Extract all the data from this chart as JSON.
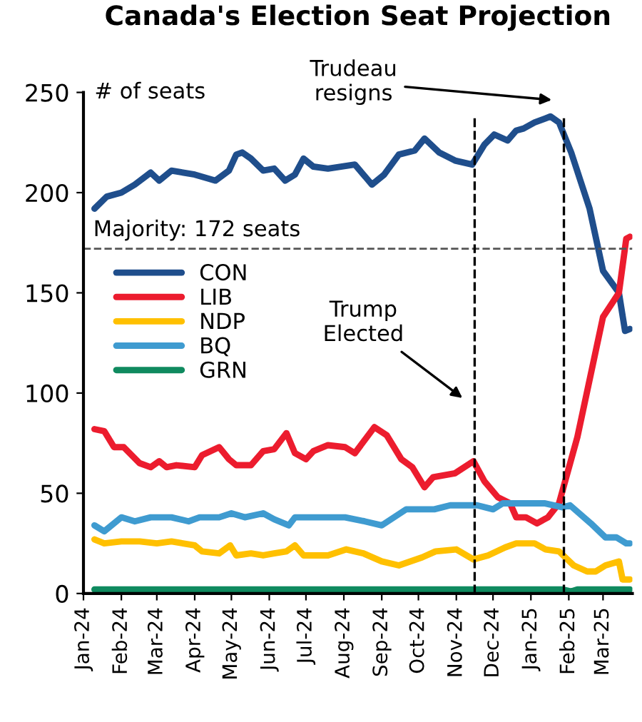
{
  "chart_data": {
    "type": "line",
    "title": "Canada's Election Seat Projection",
    "ylabel": "# of seats",
    "xlim": [
      "2024-01-01",
      "2025-03-25"
    ],
    "xticks": [
      {
        "value": "2024-01-01",
        "label": "Jan-24"
      },
      {
        "value": "2024-02-01",
        "label": "Feb-24"
      },
      {
        "value": "2024-03-01",
        "label": "Mar-24"
      },
      {
        "value": "2024-04-01",
        "label": "Apr-24"
      },
      {
        "value": "2024-05-01",
        "label": "May-24"
      },
      {
        "value": "2024-06-01",
        "label": "Jun-24"
      },
      {
        "value": "2024-07-01",
        "label": "Jul-24"
      },
      {
        "value": "2024-08-01",
        "label": "Aug-24"
      },
      {
        "value": "2024-09-01",
        "label": "Sep-24"
      },
      {
        "value": "2024-10-01",
        "label": "Oct-24"
      },
      {
        "value": "2024-11-01",
        "label": "Nov-24"
      },
      {
        "value": "2024-12-01",
        "label": "Dec-24"
      },
      {
        "value": "2025-01-01",
        "label": "Jan-25"
      },
      {
        "value": "2025-02-01",
        "label": "Feb-25"
      },
      {
        "value": "2025-03-01",
        "label": "Mar-25"
      }
    ],
    "ylim": [
      0,
      250
    ],
    "yticks": [
      0,
      50,
      100,
      150,
      200,
      250
    ],
    "grid": false,
    "legend": "top left",
    "series": [
      {
        "name": "CON",
        "color": "#1f4e8c",
        "x": [
          "2024-01-10",
          "2024-01-20",
          "2024-02-01",
          "2024-02-12",
          "2024-02-25",
          "2024-03-03",
          "2024-03-13",
          "2024-04-01",
          "2024-04-18",
          "2024-04-29",
          "2024-05-05",
          "2024-05-10",
          "2024-05-17",
          "2024-05-27",
          "2024-06-05",
          "2024-06-14",
          "2024-06-22",
          "2024-06-29",
          "2024-07-07",
          "2024-07-19",
          "2024-08-10",
          "2024-08-24",
          "2024-09-03",
          "2024-09-15",
          "2024-09-28",
          "2024-10-06",
          "2024-10-18",
          "2024-10-31",
          "2024-11-14",
          "2024-11-24",
          "2024-12-02",
          "2024-12-13",
          "2024-12-20",
          "2024-12-26",
          "2025-01-04",
          "2025-01-17",
          "2025-01-24",
          "2025-02-03",
          "2025-02-18",
          "2025-03-01",
          "2025-03-14",
          "2025-03-19",
          "2025-03-23"
        ],
        "values": [
          192,
          198,
          200,
          204,
          210,
          206,
          211,
          209,
          206,
          211,
          219,
          220,
          217,
          211,
          212,
          206,
          209,
          217,
          213,
          212,
          214,
          204,
          209,
          219,
          221,
          227,
          220,
          216,
          214,
          224,
          229,
          226,
          231,
          232,
          235,
          238,
          235,
          220,
          192,
          161,
          150,
          131,
          132
        ]
      },
      {
        "name": "LIB",
        "color": "#ec1c2e",
        "x": [
          "2024-01-10",
          "2024-01-18",
          "2024-01-26",
          "2024-02-03",
          "2024-02-16",
          "2024-02-25",
          "2024-03-03",
          "2024-03-09",
          "2024-03-17",
          "2024-04-01",
          "2024-04-07",
          "2024-04-21",
          "2024-04-29",
          "2024-05-05",
          "2024-05-17",
          "2024-05-27",
          "2024-06-05",
          "2024-06-15",
          "2024-06-22",
          "2024-07-01",
          "2024-07-07",
          "2024-07-19",
          "2024-08-02",
          "2024-08-10",
          "2024-08-26",
          "2024-09-05",
          "2024-09-17",
          "2024-09-26",
          "2024-10-06",
          "2024-10-13",
          "2024-10-31",
          "2024-11-15",
          "2024-11-24",
          "2024-12-05",
          "2024-12-15",
          "2024-12-20",
          "2024-12-28",
          "2025-01-06",
          "2025-01-15",
          "2025-01-24",
          "2025-02-08",
          "2025-03-01",
          "2025-03-14",
          "2025-03-20",
          "2025-03-23"
        ],
        "values": [
          82,
          81,
          73,
          73,
          65,
          63,
          66,
          63,
          64,
          63,
          69,
          73,
          67,
          64,
          64,
          71,
          72,
          80,
          70,
          67,
          71,
          74,
          73,
          70,
          83,
          79,
          67,
          63,
          53,
          58,
          60,
          66,
          56,
          48,
          45,
          38,
          38,
          35,
          38,
          45,
          78,
          138,
          150,
          177,
          178
        ]
      },
      {
        "name": "NDP",
        "color": "#ffc000",
        "x": [
          "2024-01-10",
          "2024-01-18",
          "2024-02-01",
          "2024-02-16",
          "2024-03-01",
          "2024-03-13",
          "2024-04-01",
          "2024-04-07",
          "2024-04-21",
          "2024-04-30",
          "2024-05-05",
          "2024-05-17",
          "2024-05-27",
          "2024-06-05",
          "2024-06-15",
          "2024-06-22",
          "2024-06-29",
          "2024-07-12",
          "2024-07-19",
          "2024-08-03",
          "2024-08-17",
          "2024-09-01",
          "2024-09-15",
          "2024-10-04",
          "2024-10-15",
          "2024-11-01",
          "2024-11-15",
          "2024-11-27",
          "2024-12-11",
          "2024-12-20",
          "2025-01-04",
          "2025-01-13",
          "2025-01-24",
          "2025-02-05",
          "2025-02-16",
          "2025-02-23",
          "2025-03-03",
          "2025-03-14",
          "2025-03-17",
          "2025-03-23"
        ],
        "values": [
          27,
          25,
          26,
          26,
          25,
          26,
          24,
          21,
          20,
          24,
          19,
          20,
          19,
          20,
          21,
          24,
          19,
          19,
          19,
          22,
          20,
          16,
          14,
          18,
          21,
          22,
          17,
          19,
          23,
          25,
          25,
          22,
          21,
          14,
          11,
          11,
          14,
          16,
          7,
          7
        ]
      },
      {
        "name": "BQ",
        "color": "#3f9bd0",
        "x": [
          "2024-01-10",
          "2024-01-18",
          "2024-02-01",
          "2024-02-12",
          "2024-02-25",
          "2024-03-13",
          "2024-03-27",
          "2024-04-05",
          "2024-04-21",
          "2024-05-01",
          "2024-05-12",
          "2024-05-27",
          "2024-06-05",
          "2024-06-17",
          "2024-06-22",
          "2024-07-07",
          "2024-07-19",
          "2024-08-02",
          "2024-08-18",
          "2024-09-01",
          "2024-09-21",
          "2024-10-14",
          "2024-10-27",
          "2024-11-18",
          "2024-12-01",
          "2024-12-09",
          "2025-01-12",
          "2025-01-27",
          "2025-02-02",
          "2025-02-19",
          "2025-03-03",
          "2025-03-12",
          "2025-03-20",
          "2025-03-23"
        ],
        "values": [
          34,
          31,
          38,
          36,
          38,
          38,
          36,
          38,
          38,
          40,
          38,
          40,
          37,
          34,
          38,
          38,
          38,
          38,
          36,
          34,
          42,
          42,
          44,
          44,
          42,
          45,
          45,
          43,
          44,
          35,
          28,
          28,
          25,
          25
        ]
      },
      {
        "name": "GRN",
        "color": "#0f8a5f",
        "x": [
          "2024-01-10",
          "2025-01-27",
          "2025-02-03",
          "2025-02-08",
          "2025-03-23"
        ],
        "values": [
          2,
          2,
          1,
          2,
          2
        ]
      }
    ],
    "ref_lines": [
      {
        "axis": "y",
        "value": 172,
        "label": "Majority: 172 seats",
        "color": "#555555",
        "line_style": "dashed"
      },
      {
        "axis": "x",
        "value": "2024-11-16",
        "label": null,
        "color": "#000000",
        "line_style": "dashed"
      },
      {
        "axis": "x",
        "value": "2025-01-28",
        "label": null,
        "color": "#000000",
        "line_style": "dashed"
      }
    ],
    "annotations": [
      "Trump\nElected",
      "Trudeau\nresigns"
    ]
  }
}
